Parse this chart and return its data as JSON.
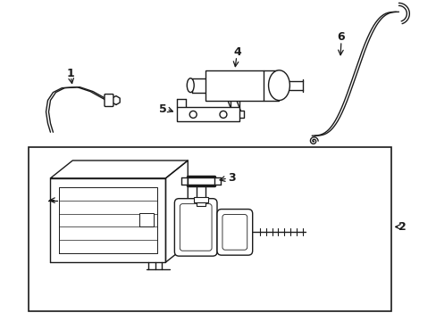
{
  "background_color": "#ffffff",
  "line_color": "#1a1a1a",
  "lw": 1.0
}
